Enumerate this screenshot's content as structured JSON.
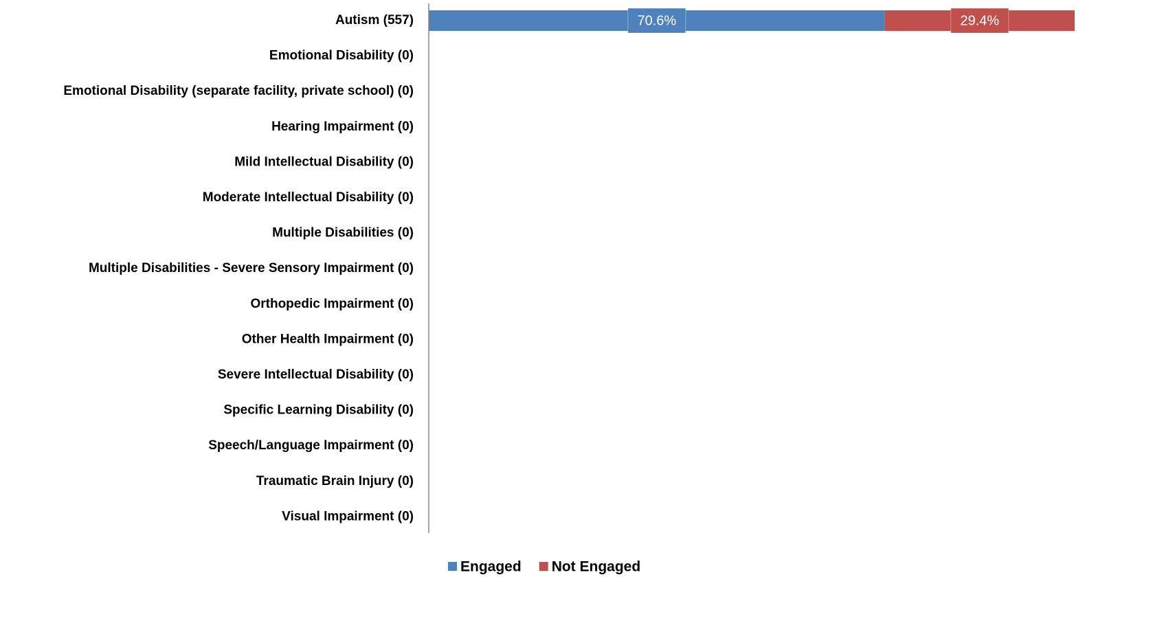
{
  "chart_data": {
    "type": "stacked_bar_horizontal",
    "categories": [
      "Autism (557)",
      "Emotional Disability (0)",
      "Emotional Disability (separate facility, private school) (0)",
      "Hearing Impairment (0)",
      "Mild Intellectual Disability (0)",
      "Moderate Intellectual Disability (0)",
      "Multiple Disabilities (0)",
      "Multiple Disabilities - Severe Sensory Impairment (0)",
      "Orthopedic Impairment (0)",
      "Other Health Impairment (0)",
      "Severe Intellectual Disability (0)",
      "Specific Learning Disability (0)",
      "Speech/Language Impairment (0)",
      "Traumatic Brain Injury (0)",
      "Visual Impairment (0)"
    ],
    "series": [
      {
        "name": "Engaged",
        "color": "#4f81bd",
        "values": [
          70.6,
          null,
          null,
          null,
          null,
          null,
          null,
          null,
          null,
          null,
          null,
          null,
          null,
          null,
          null
        ],
        "value_labels": [
          "70.6%",
          null,
          null,
          null,
          null,
          null,
          null,
          null,
          null,
          null,
          null,
          null,
          null,
          null,
          null
        ]
      },
      {
        "name": "Not Engaged",
        "color": "#c0504d",
        "values": [
          29.4,
          null,
          null,
          null,
          null,
          null,
          null,
          null,
          null,
          null,
          null,
          null,
          null,
          null,
          null
        ],
        "value_labels": [
          "29.4%",
          null,
          null,
          null,
          null,
          null,
          null,
          null,
          null,
          null,
          null,
          null,
          null,
          null,
          null
        ]
      }
    ],
    "xlim": [
      0,
      100
    ],
    "legend": "bottom"
  }
}
